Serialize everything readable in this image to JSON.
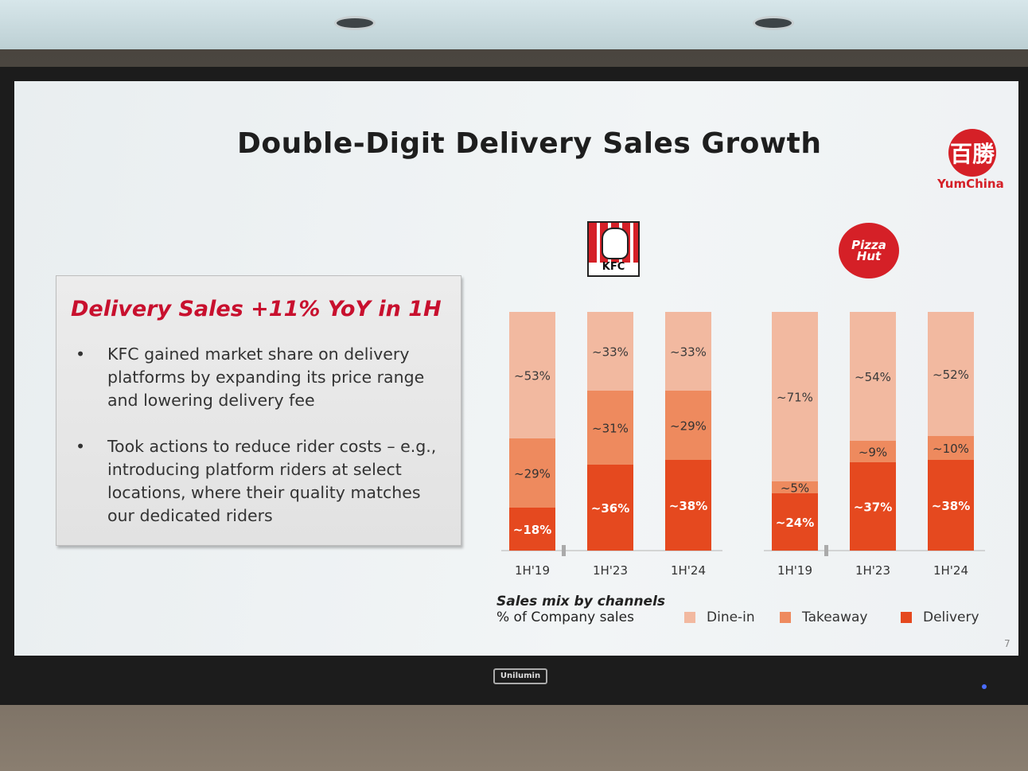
{
  "slide": {
    "title": "Double-Digit Delivery Sales Growth",
    "page_number": "7",
    "brand_name": "YumChina",
    "brand_logo_glyph": "百勝",
    "kfc_logo_text": "KFC",
    "pizzahut_logo_text": "Pizza Hut",
    "monitor_brand": "Unilumin"
  },
  "box": {
    "heading": "Delivery Sales +11% YoY in 1H",
    "bullet_symbol": "•",
    "bullets": [
      "KFC gained market share on delivery platforms by expanding its price range and lowering delivery fee",
      "Took actions to reduce rider costs – e.g., introducing platform riders at select locations, where their quality matches our dedicated riders"
    ]
  },
  "chart_data": {
    "type": "bar",
    "stacked": true,
    "title": "Sales mix by channels",
    "subtitle": "% of Company sales",
    "colors": {
      "Dine-in": "#f2b9a0",
      "Takeaway": "#ee8a5e",
      "Delivery": "#e5491f"
    },
    "legend": [
      "Dine-in",
      "Takeaway",
      "Delivery"
    ],
    "legend_position": "bottom-right",
    "groups": [
      {
        "brand": "KFC",
        "categories": [
          "1H'19",
          "1H'23",
          "1H'24"
        ],
        "series": [
          {
            "name": "Delivery",
            "values": [
              18,
              36,
              38
            ],
            "labels": [
              "~18%",
              "~36%",
              "~38%"
            ]
          },
          {
            "name": "Takeaway",
            "values": [
              29,
              31,
              29
            ],
            "labels": [
              "~29%",
              "~31%",
              "~29%"
            ]
          },
          {
            "name": "Dine-in",
            "values": [
              53,
              33,
              33
            ],
            "labels": [
              "~53%",
              "~33%",
              "~33%"
            ]
          }
        ]
      },
      {
        "brand": "Pizza Hut",
        "categories": [
          "1H'19",
          "1H'23",
          "1H'24"
        ],
        "series": [
          {
            "name": "Delivery",
            "values": [
              24,
              37,
              38
            ],
            "labels": [
              "~24%",
              "~37%",
              "~38%"
            ]
          },
          {
            "name": "Takeaway",
            "values": [
              5,
              9,
              10
            ],
            "labels": [
              "~5%",
              "~9%",
              "~10%"
            ]
          },
          {
            "name": "Dine-in",
            "values": [
              71,
              54,
              52
            ],
            "labels": [
              "~71%",
              "~54%",
              "~52%"
            ]
          }
        ]
      }
    ]
  }
}
